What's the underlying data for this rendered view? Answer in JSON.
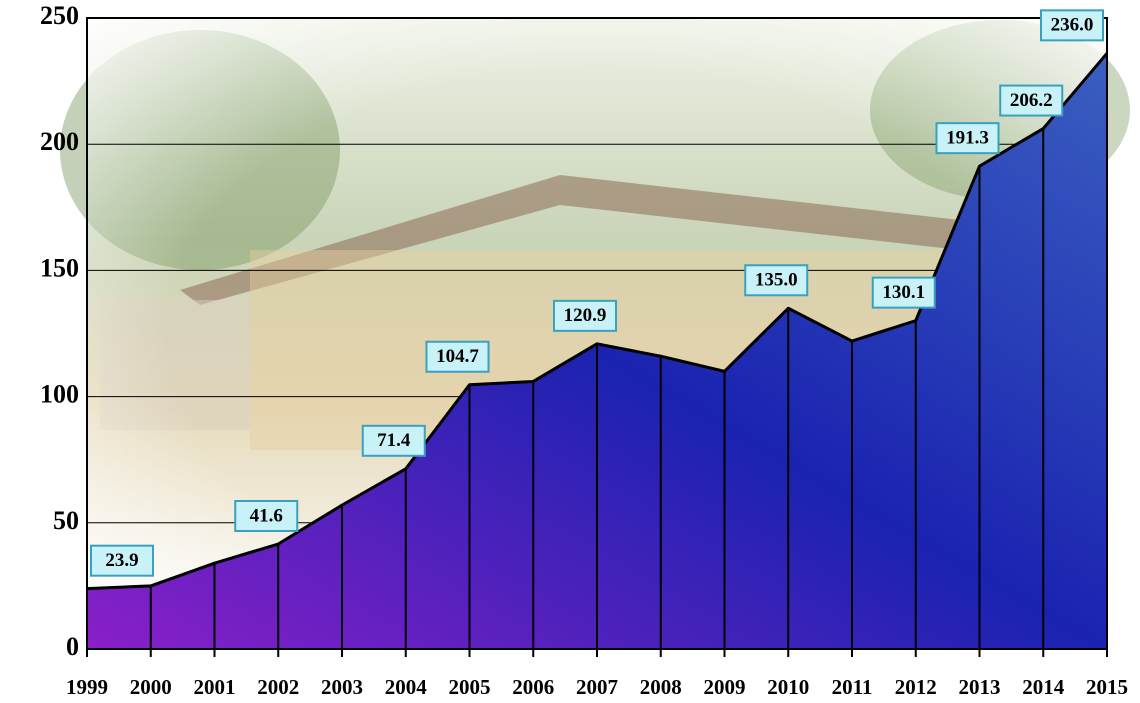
{
  "chart_data": {
    "type": "area",
    "categories": [
      "1999",
      "2000",
      "2001",
      "2002",
      "2003",
      "2004",
      "2005",
      "2006",
      "2007",
      "2008",
      "2009",
      "2010",
      "2011",
      "2012",
      "2013",
      "2014",
      "2015"
    ],
    "values": [
      23.9,
      25,
      34,
      41.6,
      57,
      71.4,
      104.7,
      106,
      120.9,
      116,
      110,
      135.0,
      122,
      130.1,
      191.3,
      206.2,
      236.0
    ],
    "value_labels": [
      "23.9",
      null,
      null,
      "41.6",
      null,
      "71.4",
      "104.7",
      null,
      "120.9",
      null,
      null,
      "135.0",
      null,
      "130.1",
      "191.3",
      "206.2",
      "236.0"
    ],
    "ylim": [
      0,
      250
    ],
    "yticks": [
      0,
      50,
      100,
      150,
      200,
      250
    ],
    "grid": true,
    "colors": [
      "#8a1fc9",
      "#1a23b0",
      "#3a5fc0"
    ]
  }
}
